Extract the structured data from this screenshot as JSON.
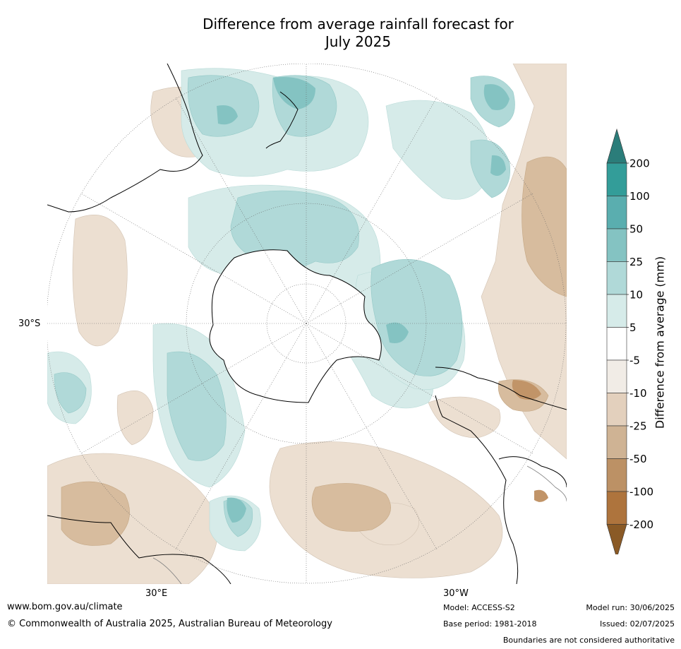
{
  "title": {
    "line1": "Difference from average rainfall forecast for",
    "line2": "July 2025"
  },
  "map": {
    "projection": "south-polar-stereographic",
    "labels": {
      "lat_30s": "30°S",
      "lon_30e": "30°E",
      "lon_30w": "30°W"
    },
    "colors": {
      "land_outline": "#000000",
      "graticule": "#555555",
      "wet": "#5aa9a8",
      "dry": "#b98a5a"
    }
  },
  "legend": {
    "title": "Difference from average (mm)",
    "ticks": [
      "200",
      "100",
      "50",
      "25",
      "10",
      "5",
      "-5",
      "-10",
      "-25",
      "-50",
      "-100",
      "-200"
    ],
    "colors": [
      "#2b7d7a",
      "#339d99",
      "#5aaeaf",
      "#84c3c2",
      "#b0d9d8",
      "#d6ebe9",
      "#ffffff",
      "#f1ece6",
      "#e3d0bd",
      "#cfb394",
      "#bc9165",
      "#ae743d",
      "#8a5a26"
    ]
  },
  "footer": {
    "website": "www.bom.gov.au/climate",
    "copyright": "© Commonwealth of Australia 2025, Australian Bureau of Meteorology",
    "model": "Model: ACCESS-S2",
    "base_period": "Base period: 1981-2018",
    "model_run": "Model run: 30/06/2025",
    "issued": "Issued: 02/07/2025",
    "disclaimer": "Boundaries are not considered authoritative"
  }
}
